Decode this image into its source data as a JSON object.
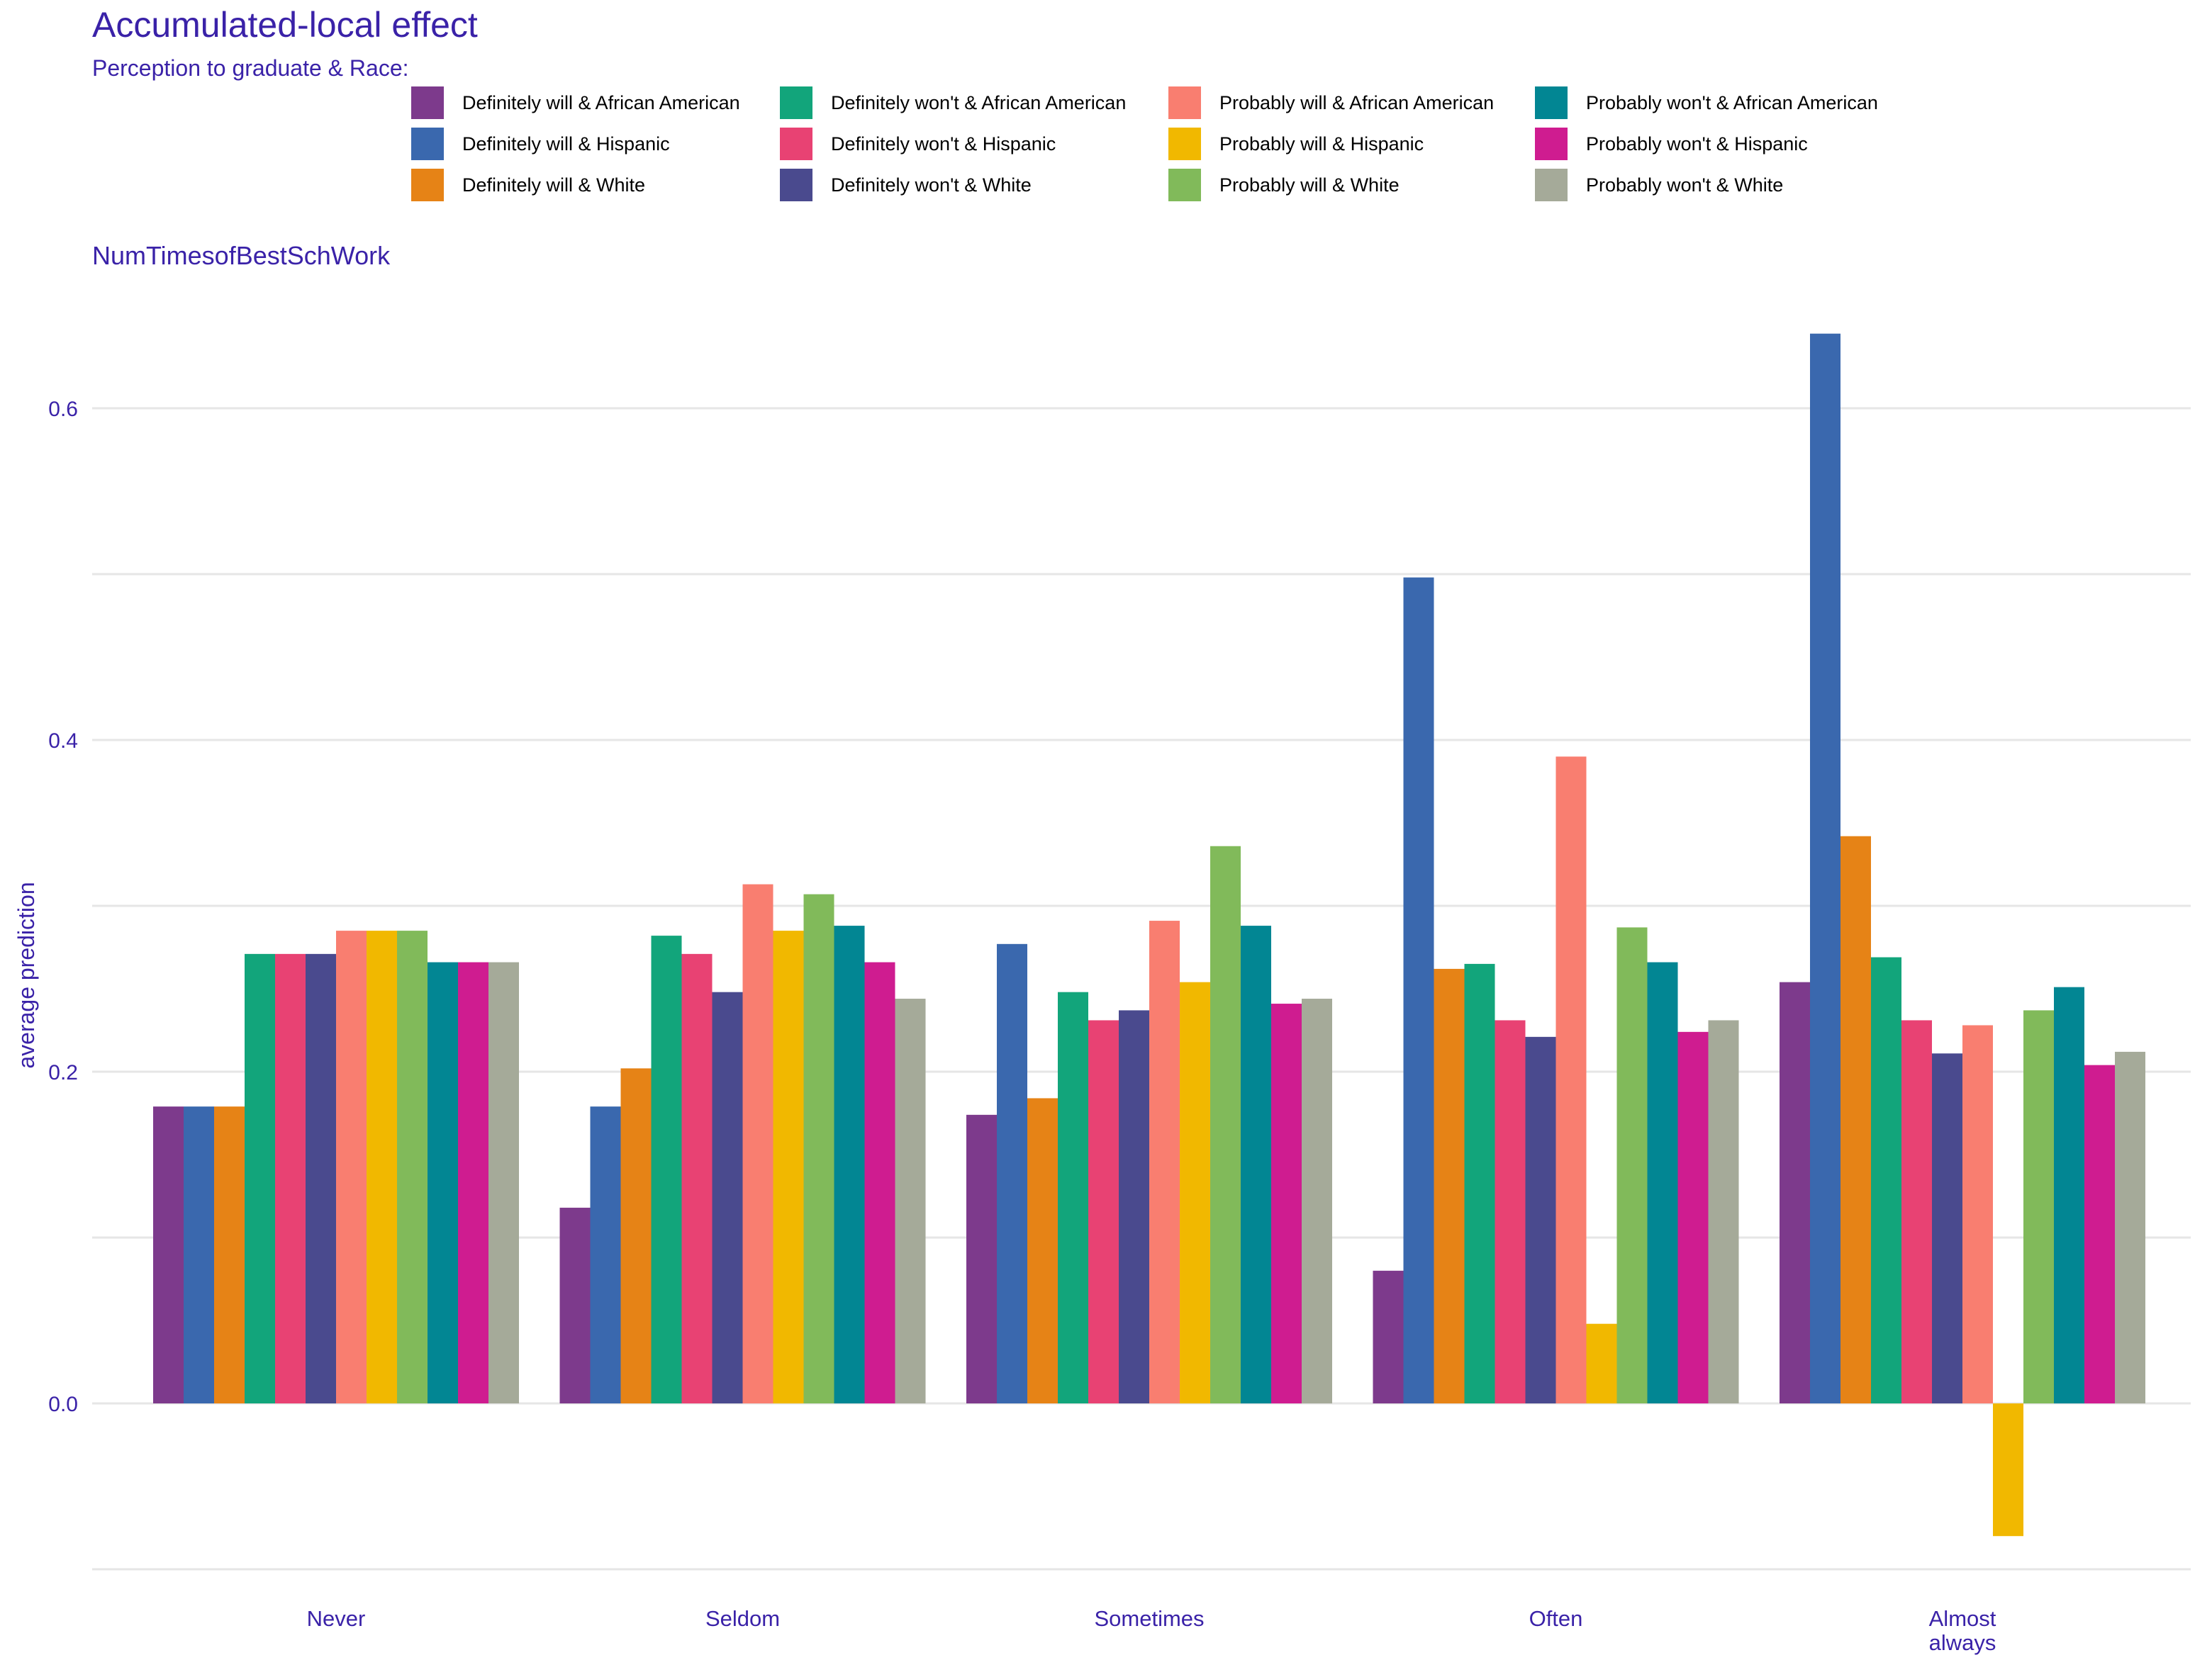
{
  "title": "Accumulated-local effect",
  "legend_title": "Perception to graduate & Race:",
  "subtitle": "NumTimesofBestSchWork",
  "chart_data": {
    "type": "bar",
    "title": "Accumulated-local effect",
    "subtitle": "NumTimesofBestSchWork",
    "xlabel": "",
    "ylabel": "average prediction",
    "ylim": [
      -0.1,
      0.65
    ],
    "yticks": [
      0.0,
      0.2,
      0.4,
      0.6
    ],
    "ytick_labels": [
      "0.0",
      "0.2",
      "0.4",
      "0.6"
    ],
    "grid": true,
    "legend_position": "top",
    "categories": [
      "Never",
      "Seldom",
      "Sometimes",
      "Often",
      "Almost\nalways"
    ],
    "series": [
      {
        "name": "Definitely will & African American",
        "color": "#7D3A8C",
        "values": [
          0.179,
          0.118,
          0.174,
          0.08,
          0.254
        ]
      },
      {
        "name": "Definitely will & Hispanic",
        "color": "#3A68AE",
        "values": [
          0.179,
          0.179,
          0.277,
          0.498,
          0.645
        ]
      },
      {
        "name": "Definitely will & White",
        "color": "#E68316",
        "values": [
          0.179,
          0.202,
          0.184,
          0.262,
          0.342
        ]
      },
      {
        "name": "Definitely won't & African American",
        "color": "#12A57B",
        "values": [
          0.271,
          0.282,
          0.248,
          0.265,
          0.269
        ]
      },
      {
        "name": "Definitely won't & Hispanic",
        "color": "#E84273",
        "values": [
          0.271,
          0.271,
          0.231,
          0.231,
          0.231
        ]
      },
      {
        "name": "Definitely won't & White",
        "color": "#4A4A8E",
        "values": [
          0.271,
          0.248,
          0.237,
          0.221,
          0.211
        ]
      },
      {
        "name": "Probably will & African American",
        "color": "#F97E70",
        "values": [
          0.285,
          0.313,
          0.291,
          0.39,
          0.228
        ]
      },
      {
        "name": "Probably will & Hispanic",
        "color": "#F1B800",
        "values": [
          0.285,
          0.285,
          0.254,
          0.048,
          -0.08
        ]
      },
      {
        "name": "Probably will & White",
        "color": "#81BA5A",
        "values": [
          0.285,
          0.307,
          0.336,
          0.287,
          0.237
        ]
      },
      {
        "name": "Probably won't & African American",
        "color": "#028693",
        "values": [
          0.266,
          0.288,
          0.288,
          0.266,
          0.251
        ]
      },
      {
        "name": "Probably won't & Hispanic",
        "color": "#CF1C90",
        "values": [
          0.266,
          0.266,
          0.241,
          0.224,
          0.204
        ]
      },
      {
        "name": "Probably won't & White",
        "color": "#A5AA99",
        "values": [
          0.266,
          0.244,
          0.244,
          0.231,
          0.212
        ]
      }
    ]
  }
}
